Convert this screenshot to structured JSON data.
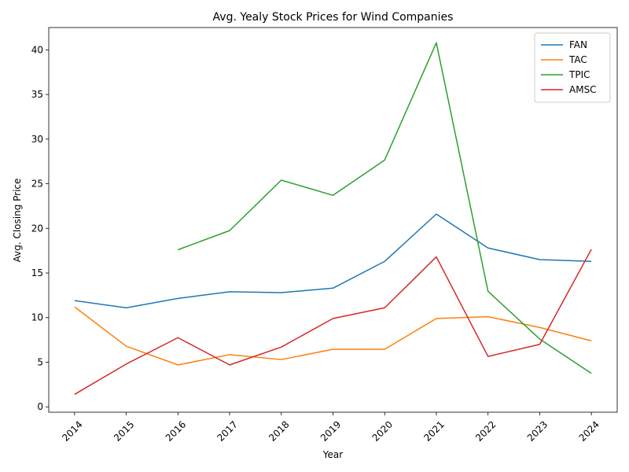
{
  "chart_data": {
    "type": "line",
    "title": "Avg. Yealy Stock Prices for Wind Companies",
    "xlabel": "Year",
    "ylabel": "Avg. Closing Price",
    "x": [
      2014,
      2015,
      2016,
      2017,
      2018,
      2019,
      2020,
      2021,
      2022,
      2023,
      2024
    ],
    "x_tick_labels": [
      "2014",
      "2015",
      "2016",
      "2017",
      "2018",
      "2019",
      "2020",
      "2021",
      "2022",
      "2023",
      "2024"
    ],
    "y_ticks": [
      0,
      5,
      10,
      15,
      20,
      25,
      30,
      35,
      40
    ],
    "y_tick_labels": [
      "0",
      "5",
      "10",
      "15",
      "20",
      "25",
      "30",
      "35",
      "40"
    ],
    "xlim": [
      2013.5,
      2024.5
    ],
    "ylim": [
      -0.6,
      42.5
    ],
    "grid": false,
    "legend_position": "top-right",
    "series": [
      {
        "name": "FAN",
        "color": "#1f77b4",
        "values": [
          11.9,
          11.1,
          12.15,
          12.9,
          12.8,
          13.3,
          16.3,
          21.6,
          17.8,
          16.5,
          16.3
        ]
      },
      {
        "name": "TAC",
        "color": "#ff7f0e",
        "values": [
          11.2,
          6.8,
          4.7,
          5.85,
          5.3,
          6.45,
          6.45,
          9.9,
          10.1,
          8.9,
          7.4
        ]
      },
      {
        "name": "TPIC",
        "color": "#2ca02c",
        "values": [
          null,
          null,
          17.6,
          19.75,
          25.4,
          23.7,
          27.65,
          40.8,
          12.95,
          7.6,
          3.75
        ]
      },
      {
        "name": "AMSC",
        "color": "#d62728",
        "values": [
          1.4,
          4.8,
          7.75,
          4.7,
          6.7,
          9.9,
          11.1,
          16.8,
          5.65,
          7.0,
          17.65
        ]
      }
    ]
  }
}
